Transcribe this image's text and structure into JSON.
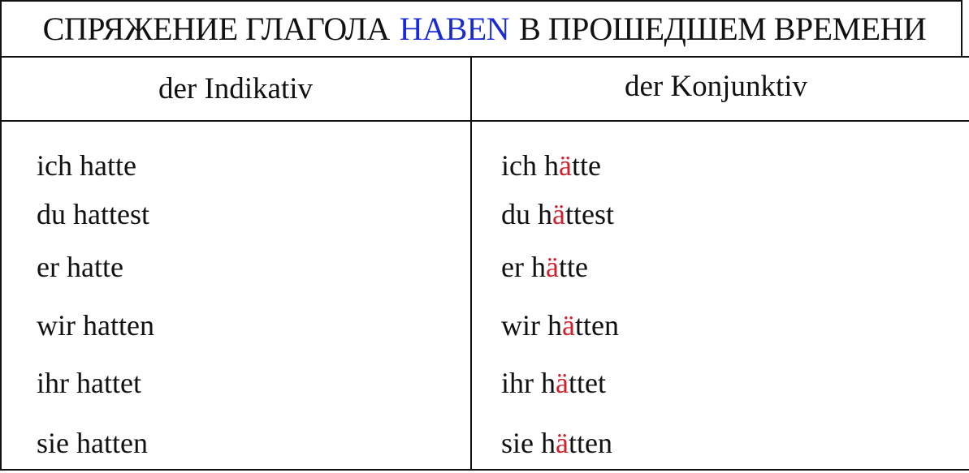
{
  "header": {
    "title_before": "СПРЯЖЕНИЕ ГЛАГОЛА",
    "title_verb": "HABEN",
    "title_after": "В ПРОШЕДШЕМ ВРЕМЕНИ"
  },
  "table": {
    "columns": [
      "der Indikativ",
      "der Konjunktiv"
    ],
    "rows": [
      {
        "indikativ": "ich hatte",
        "konjunktiv": {
          "pre": "ich h",
          "umlaut": "ä",
          "post": "tte"
        }
      },
      {
        "indikativ": "du hattest",
        "konjunktiv": {
          "pre": "du h",
          "umlaut": "ä",
          "post": "ttest"
        }
      },
      {
        "indikativ": "er hatte",
        "konjunktiv": {
          "pre": "er h",
          "umlaut": "ä",
          "post": "tte"
        }
      },
      {
        "indikativ": "wir hatten",
        "konjunktiv": {
          "pre": "wir h",
          "umlaut": "ä",
          "post": "tten"
        }
      },
      {
        "indikativ": "ihr hattet",
        "konjunktiv": {
          "pre": "ihr h",
          "umlaut": "ä",
          "post": "ttet"
        }
      },
      {
        "indikativ": "sie hatten",
        "konjunktiv": {
          "pre": "sie h",
          "umlaut": "ä",
          "post": "tten"
        }
      }
    ]
  }
}
